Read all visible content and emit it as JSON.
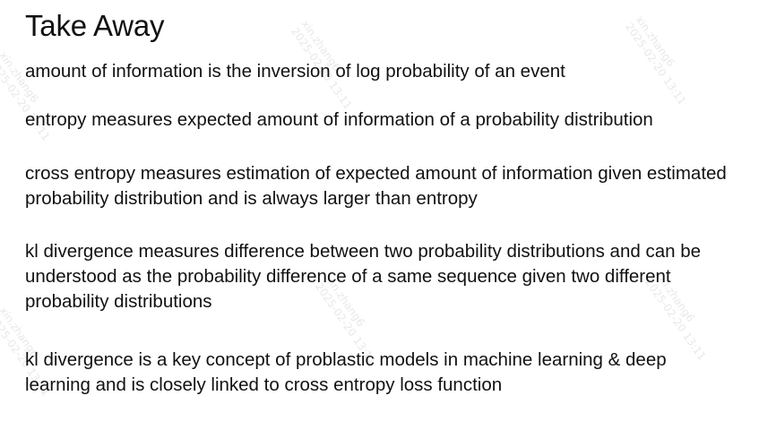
{
  "title": "Take Away",
  "bullets": [
    "amount of information is the inversion of log probability of an event",
    "entropy measures expected amount of information of a probability distribution",
    "cross entropy measures estimation of expected amount of information given estimated probability distribution and is always larger than entropy",
    "kl divergence measures difference between two probability distributions and can be understood as the probability difference of a same sequence given two different probability distributions",
    "kl divergence is a key concept of problastic models in machine learning & deep learning and is closely linked to cross entropy loss function"
  ],
  "watermark": {
    "user": "xin.zhang6",
    "date": "2025-02-20 13:11"
  }
}
